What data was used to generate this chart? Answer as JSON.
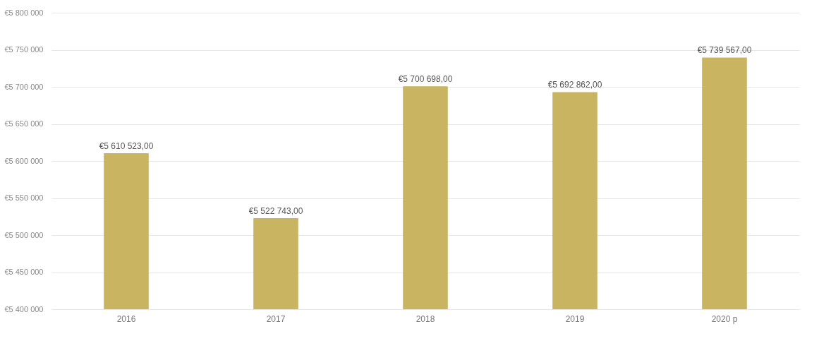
{
  "chart_data": {
    "type": "bar",
    "categories": [
      "2016",
      "2017",
      "2018",
      "2019",
      "2020 p"
    ],
    "values": [
      5610523,
      5522743,
      5700698,
      5692862,
      5739567
    ],
    "value_labels": [
      "€5 610 523,00",
      "€5 522 743,00",
      "€5 700 698,00",
      "€5 692 862,00",
      "€5 739 567,00"
    ],
    "color": "#c9b462",
    "ylim": [
      5400000,
      5800000
    ],
    "yticks": [
      {
        "value": 5400000,
        "label": "€5 400 000"
      },
      {
        "value": 5450000,
        "label": "€5 450 000"
      },
      {
        "value": 5500000,
        "label": "€5 500 000"
      },
      {
        "value": 5550000,
        "label": "€5 550 000"
      },
      {
        "value": 5600000,
        "label": "€5 600 000"
      },
      {
        "value": 5650000,
        "label": "€5 650 000"
      },
      {
        "value": 5700000,
        "label": "€5 700 000"
      },
      {
        "value": 5750000,
        "label": "€5 750 000"
      },
      {
        "value": 5800000,
        "label": "€5 800 000"
      }
    ],
    "grid": "y"
  }
}
